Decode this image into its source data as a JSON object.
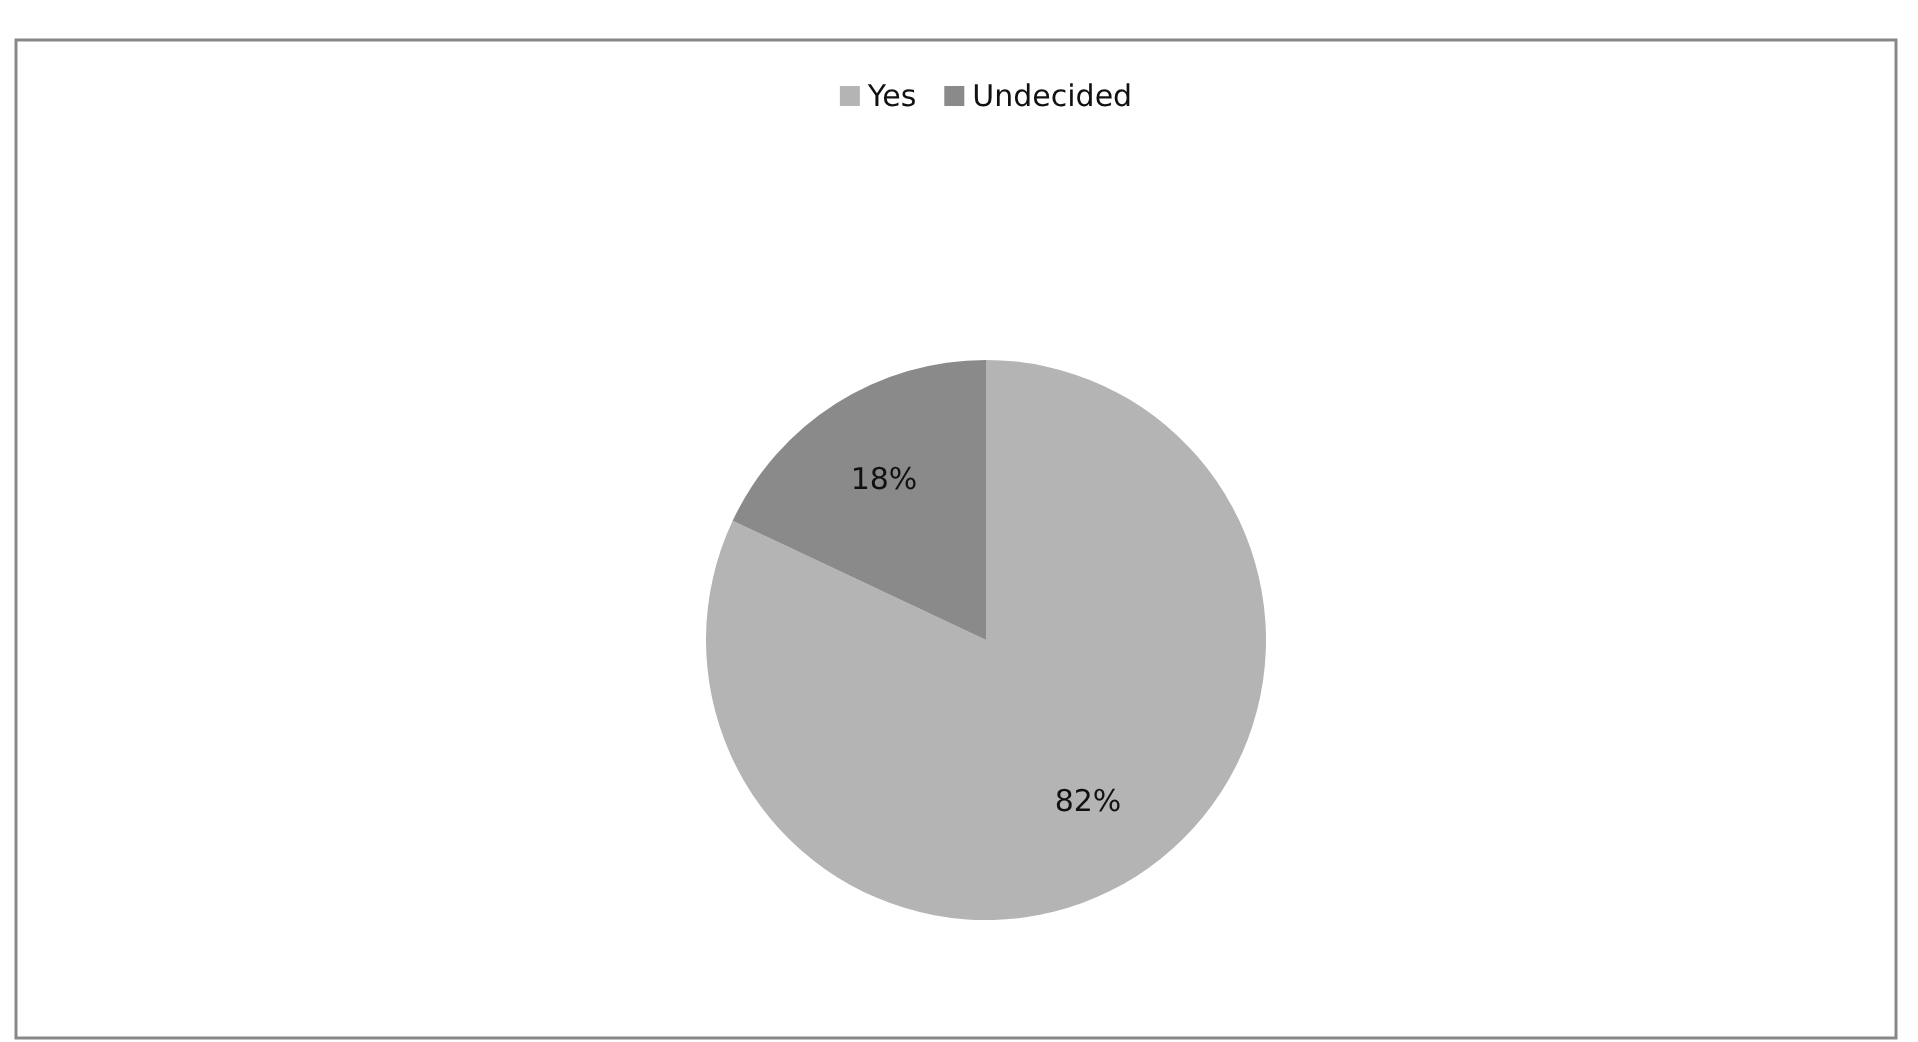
{
  "chart_data": {
    "type": "pie",
    "categories": [
      "Yes",
      "Undecided"
    ],
    "values": [
      82,
      18
    ],
    "colors": [
      "#b4b4b4",
      "#8a8a8a"
    ],
    "value_labels": [
      "82%",
      "18%"
    ],
    "legend": "top"
  }
}
